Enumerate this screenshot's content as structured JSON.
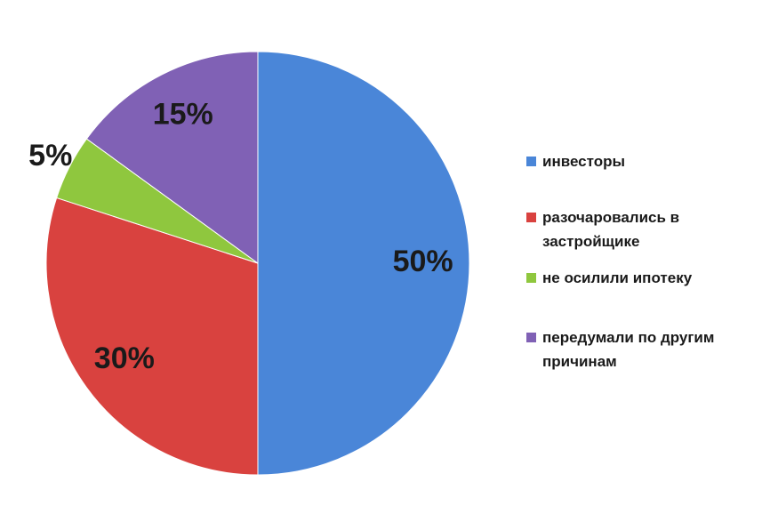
{
  "chart_data": {
    "type": "pie",
    "categories": [
      "инвесторы",
      "разочаровались в застройщике",
      "не осилили ипотеку",
      "передумали по другим причинам"
    ],
    "values": [
      50,
      30,
      5,
      15
    ],
    "value_labels": [
      "50%",
      "30%",
      "5%",
      "15%"
    ],
    "colors": [
      "#4a86d8",
      "#d9423f",
      "#8fc73e",
      "#8061b5"
    ],
    "legend": "right"
  }
}
